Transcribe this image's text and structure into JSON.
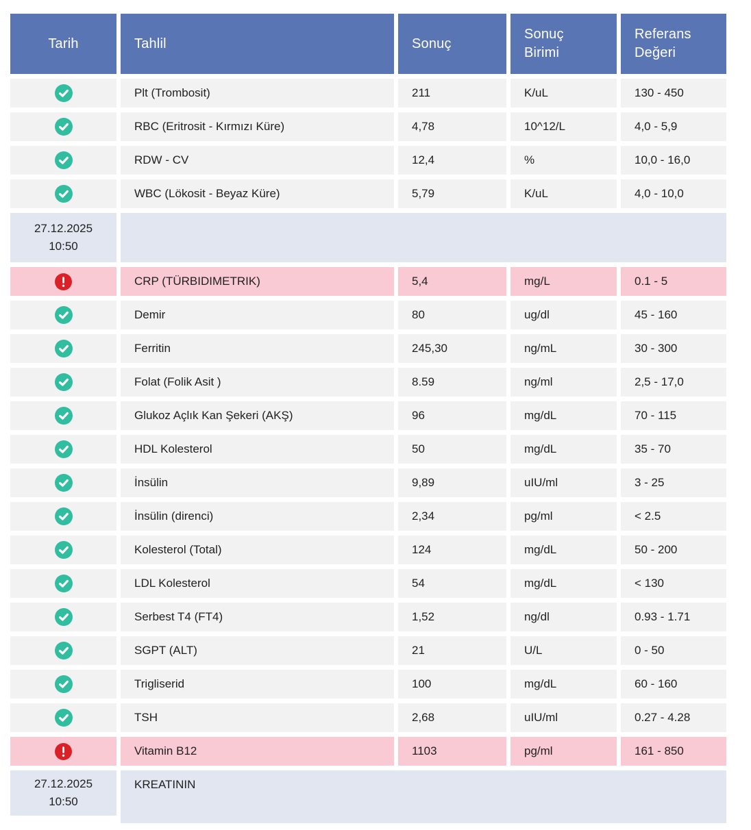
{
  "colors": {
    "header_bg": "#5a75b3",
    "header_text": "#ffffff",
    "row_bg": "#f2f2f2",
    "date_row_bg": "#e2e6f0",
    "alert_row_bg": "#f9cad3",
    "check_icon_color": "#31bda0",
    "alert_icon_color": "#da2128",
    "text_color": "#212121"
  },
  "icons": {
    "normal": "check-circle-icon",
    "alert": "exclamation-circle-icon"
  },
  "table": {
    "columns": [
      {
        "label": "Tarih"
      },
      {
        "label": "Tahlil"
      },
      {
        "label": "Sonuç"
      },
      {
        "label": "Sonuç Birimi"
      },
      {
        "label": "Referans Değeri"
      }
    ],
    "rows": [
      {
        "type": "result",
        "status": "normal",
        "tahlil": "Plt (Trombosit)",
        "sonuc": "211",
        "birim": "K/uL",
        "referans": "130 - 450"
      },
      {
        "type": "result",
        "status": "normal",
        "tahlil": "RBC (Eritrosit - Kırmızı Küre)",
        "sonuc": "4,78",
        "birim": "10^12/L",
        "referans": "4,0 - 5,9"
      },
      {
        "type": "result",
        "status": "normal",
        "tahlil": "RDW - CV",
        "sonuc": "12,4",
        "birim": "%",
        "referans": "10,0 - 16,0"
      },
      {
        "type": "result",
        "status": "normal",
        "tahlil": "WBC (Lökosit - Beyaz Küre)",
        "sonuc": "5,79",
        "birim": "K/uL",
        "referans": "4,0 - 10,0"
      },
      {
        "type": "date",
        "date": "27.12.2025",
        "time": "10:50",
        "label": ""
      },
      {
        "type": "result",
        "status": "alert",
        "tahlil": "CRP (TÜRBIDIMETRIK)",
        "sonuc": "5,4",
        "birim": "mg/L",
        "referans": "0.1 - 5"
      },
      {
        "type": "result",
        "status": "normal",
        "tahlil": "Demir",
        "sonuc": "80",
        "birim": "ug/dl",
        "referans": "45 - 160"
      },
      {
        "type": "result",
        "status": "normal",
        "tahlil": "Ferritin",
        "sonuc": "245,30",
        "birim": "ng/mL",
        "referans": "30 - 300"
      },
      {
        "type": "result",
        "status": "normal",
        "tahlil": "Folat (Folik Asit )",
        "sonuc": "8.59",
        "birim": "ng/ml",
        "referans": "2,5 - 17,0"
      },
      {
        "type": "result",
        "status": "normal",
        "tahlil": "Glukoz  Açlık Kan Şekeri (AKŞ)",
        "sonuc": "96",
        "birim": "mg/dL",
        "referans": "70 - 115"
      },
      {
        "type": "result",
        "status": "normal",
        "tahlil": "HDL Kolesterol",
        "sonuc": "50",
        "birim": "mg/dL",
        "referans": "35 - 70"
      },
      {
        "type": "result",
        "status": "normal",
        "tahlil": "İnsülin",
        "sonuc": "9,89",
        "birim": "uIU/ml",
        "referans": "3 - 25"
      },
      {
        "type": "result",
        "status": "normal",
        "tahlil": "İnsülin (direnci)",
        "sonuc": "2,34",
        "birim": "pg/ml",
        "referans": "< 2.5"
      },
      {
        "type": "result",
        "status": "normal",
        "tahlil": "Kolesterol  (Total)",
        "sonuc": "124",
        "birim": "mg/dL",
        "referans": "50 - 200"
      },
      {
        "type": "result",
        "status": "normal",
        "tahlil": "LDL Kolesterol",
        "sonuc": "54",
        "birim": "mg/dL",
        "referans": "< 130"
      },
      {
        "type": "result",
        "status": "normal",
        "tahlil": "Serbest T4 (FT4)",
        "sonuc": "1,52",
        "birim": "ng/dl",
        "referans": "0.93 - 1.71"
      },
      {
        "type": "result",
        "status": "normal",
        "tahlil": "SGPT (ALT)",
        "sonuc": "21",
        "birim": "U/L",
        "referans": "0 - 50"
      },
      {
        "type": "result",
        "status": "normal",
        "tahlil": "Trigliserid",
        "sonuc": "100",
        "birim": "mg/dL",
        "referans": "60 - 160"
      },
      {
        "type": "result",
        "status": "normal",
        "tahlil": "TSH",
        "sonuc": "2,68",
        "birim": "uIU/ml",
        "referans": "0.27 - 4.28"
      },
      {
        "type": "result",
        "status": "alert",
        "tahlil": "Vitamin B12",
        "sonuc": "1103",
        "birim": "pg/ml",
        "referans": "161 - 850"
      },
      {
        "type": "date",
        "date": "27.12.2025",
        "time": "10:50",
        "label": "KREATININ"
      }
    ]
  }
}
